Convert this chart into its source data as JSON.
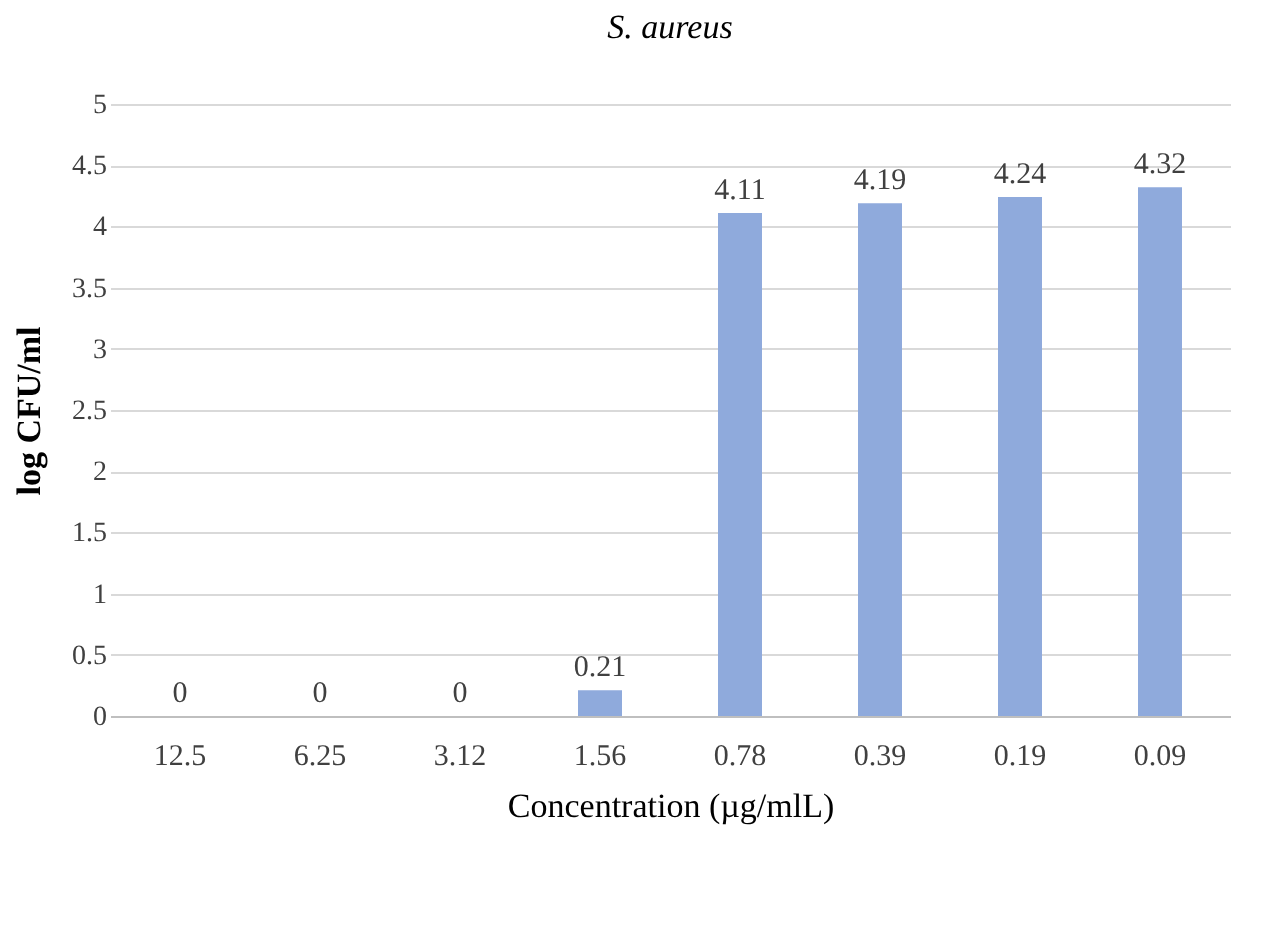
{
  "chart_data": {
    "type": "bar",
    "title": "S. aureus",
    "xlabel": "Concentration (µg/mlL)",
    "ylabel": "log CFU/ml",
    "categories": [
      "12.5",
      "6.25",
      "3.12",
      "1.56",
      "0.78",
      "0.39",
      "0.19",
      "0.09"
    ],
    "values": [
      0,
      0,
      0,
      0.21,
      4.11,
      4.19,
      4.24,
      4.32
    ],
    "color": "#8faadc",
    "ylim": [
      0,
      5
    ],
    "yticks": [
      0,
      0.5,
      1,
      1.5,
      2,
      2.5,
      3,
      3.5,
      4,
      4.5,
      5
    ],
    "grid": "y",
    "data_labels": true
  }
}
